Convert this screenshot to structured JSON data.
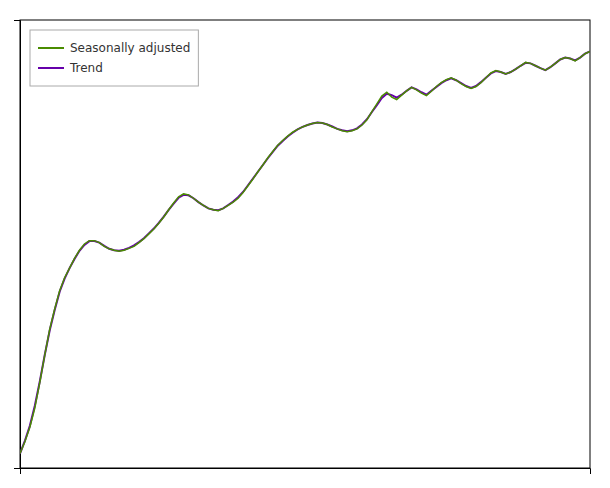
{
  "chart_data": {
    "type": "line",
    "xlim": [
      0,
      115
    ],
    "ylim": [
      -0.3,
      9.0
    ],
    "xticks": [],
    "yticks": [],
    "tick_labels": false,
    "legend": "upper left",
    "series": [
      {
        "name": "Seasonally adjusted",
        "color": "#4a8c00",
        "values": [
          0.0,
          0.25,
          0.55,
          0.95,
          1.48,
          2.05,
          2.58,
          3.0,
          3.38,
          3.65,
          3.85,
          4.05,
          4.22,
          4.35,
          4.42,
          4.42,
          4.38,
          4.3,
          4.25,
          4.22,
          4.2,
          4.22,
          4.26,
          4.3,
          4.38,
          4.46,
          4.56,
          4.66,
          4.78,
          4.91,
          5.06,
          5.2,
          5.33,
          5.39,
          5.37,
          5.3,
          5.22,
          5.15,
          5.09,
          5.06,
          5.04,
          5.09,
          5.15,
          5.22,
          5.3,
          5.42,
          5.56,
          5.7,
          5.85,
          5.99,
          6.14,
          6.27,
          6.4,
          6.5,
          6.59,
          6.67,
          6.73,
          6.78,
          6.82,
          6.85,
          6.87,
          6.86,
          6.83,
          6.78,
          6.74,
          6.7,
          6.68,
          6.7,
          6.74,
          6.82,
          6.93,
          7.1,
          7.26,
          7.42,
          7.5,
          7.4,
          7.35,
          7.44,
          7.53,
          7.6,
          7.55,
          7.48,
          7.43,
          7.52,
          7.62,
          7.7,
          7.76,
          7.8,
          7.75,
          7.68,
          7.62,
          7.58,
          7.62,
          7.7,
          7.8,
          7.9,
          7.95,
          7.92,
          7.88,
          7.92,
          7.98,
          8.05,
          8.12,
          8.1,
          8.05,
          8.0,
          7.96,
          8.02,
          8.1,
          8.18,
          8.22,
          8.2,
          8.15,
          8.22,
          8.3,
          8.35
        ]
      },
      {
        "name": "Trend",
        "color": "#6600aa",
        "values": [
          0.0,
          0.27,
          0.58,
          1.0,
          1.5,
          2.05,
          2.56,
          2.98,
          3.36,
          3.63,
          3.85,
          4.04,
          4.21,
          4.33,
          4.41,
          4.41,
          4.38,
          4.31,
          4.25,
          4.22,
          4.21,
          4.23,
          4.27,
          4.32,
          4.39,
          4.47,
          4.57,
          4.67,
          4.79,
          4.92,
          5.06,
          5.19,
          5.31,
          5.37,
          5.36,
          5.3,
          5.22,
          5.15,
          5.09,
          5.06,
          5.05,
          5.09,
          5.16,
          5.23,
          5.32,
          5.43,
          5.57,
          5.71,
          5.85,
          5.99,
          6.13,
          6.26,
          6.39,
          6.49,
          6.58,
          6.66,
          6.73,
          6.78,
          6.82,
          6.85,
          6.87,
          6.86,
          6.83,
          6.79,
          6.74,
          6.71,
          6.69,
          6.71,
          6.75,
          6.83,
          6.94,
          7.09,
          7.23,
          7.38,
          7.47,
          7.44,
          7.39,
          7.45,
          7.53,
          7.6,
          7.56,
          7.5,
          7.45,
          7.53,
          7.61,
          7.69,
          7.75,
          7.79,
          7.75,
          7.69,
          7.63,
          7.59,
          7.63,
          7.71,
          7.8,
          7.89,
          7.94,
          7.92,
          7.88,
          7.92,
          7.98,
          8.05,
          8.11,
          8.1,
          8.05,
          8.0,
          7.96,
          8.02,
          8.1,
          8.18,
          8.22,
          8.2,
          8.16,
          8.22,
          8.3,
          8.35
        ]
      }
    ]
  }
}
